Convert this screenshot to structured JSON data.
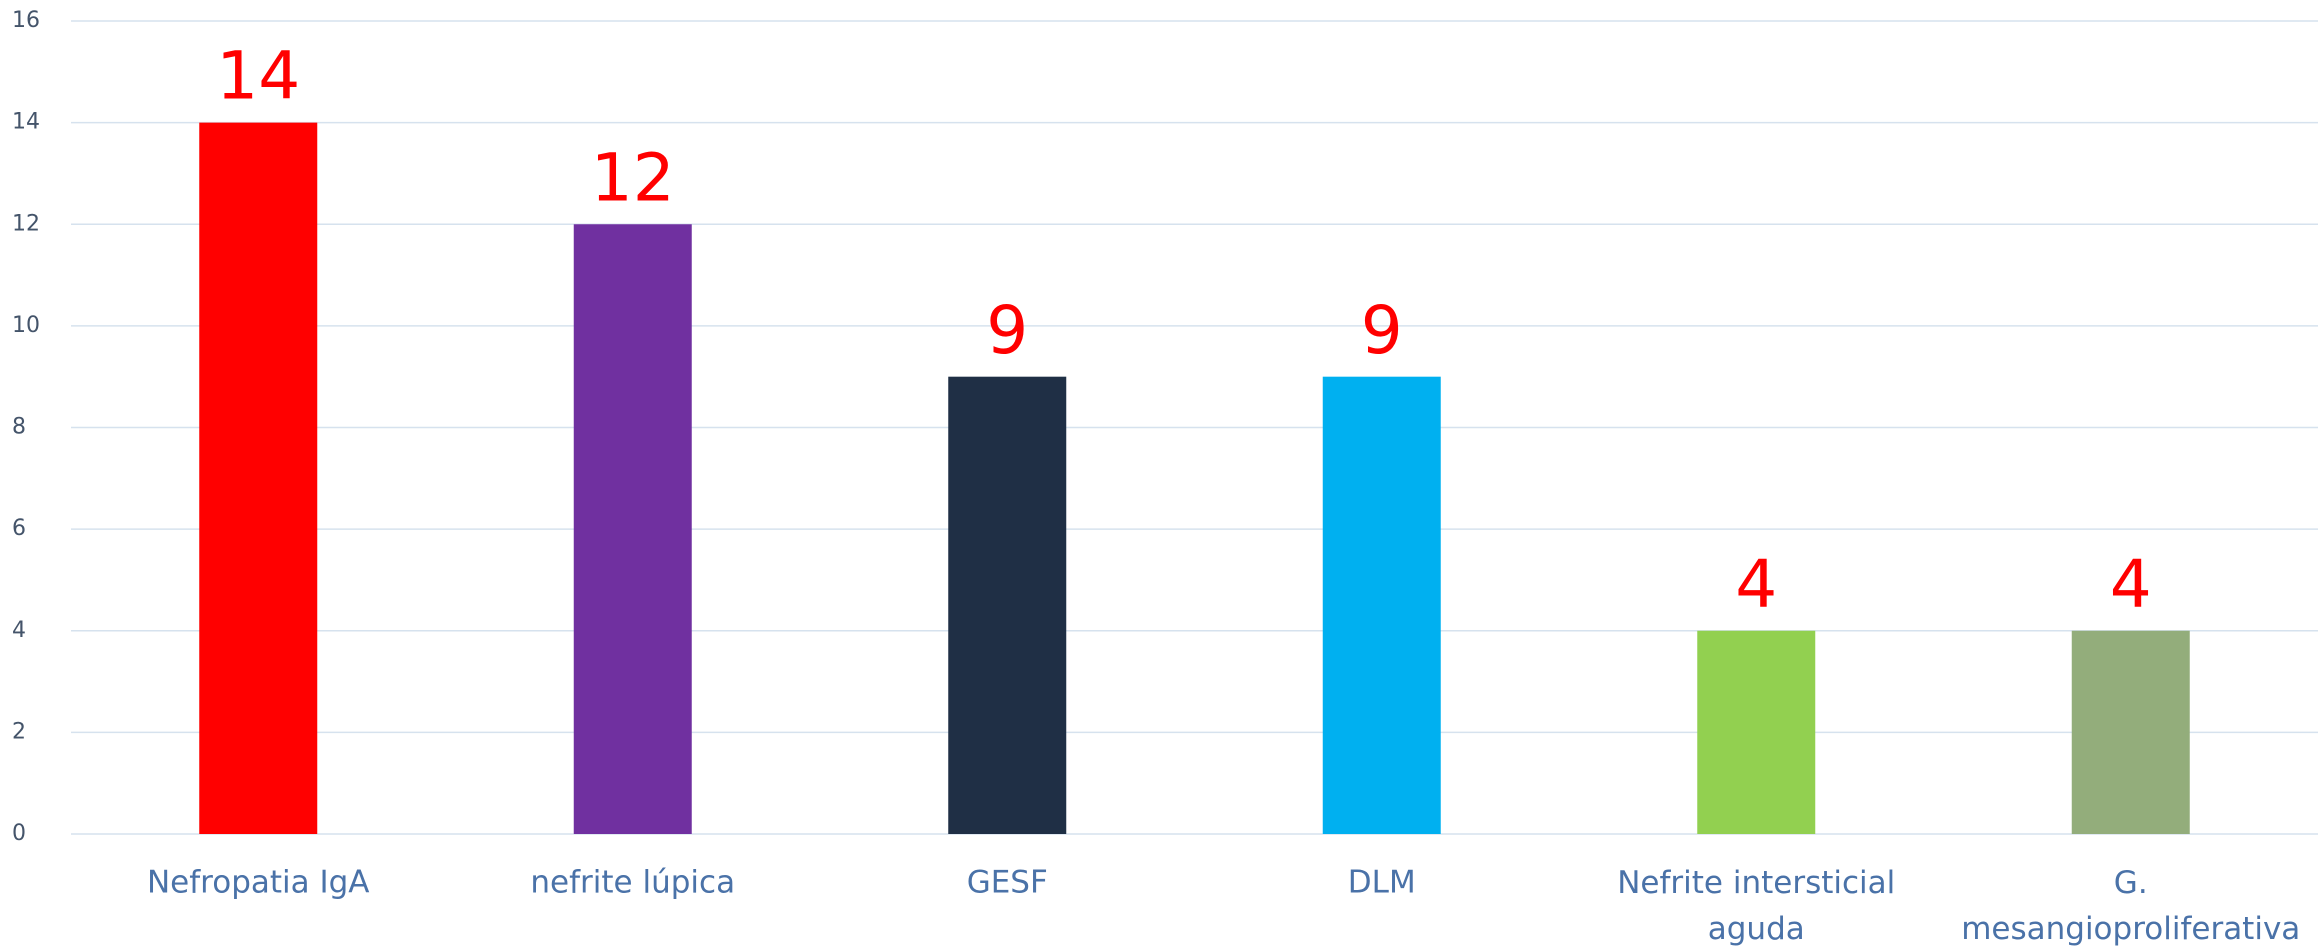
{
  "chart_data": {
    "type": "bar",
    "categories": [
      "Nefropatia IgA",
      "nefrite lúpica",
      "GESF",
      "DLM",
      "Nefrite intersticial aguda",
      "G. mesangioproliferativa"
    ],
    "values": [
      14,
      12,
      9,
      9,
      4,
      4
    ],
    "colors": [
      "#ff0000",
      "#7030a0",
      "#1f2f45",
      "#00b0f0",
      "#92d050",
      "#93ad7b"
    ],
    "label_color": "#ff0000",
    "ylim": [
      0,
      16
    ],
    "yticks": [
      0,
      2,
      4,
      6,
      8,
      10,
      12,
      14,
      16
    ],
    "grid": true
  }
}
